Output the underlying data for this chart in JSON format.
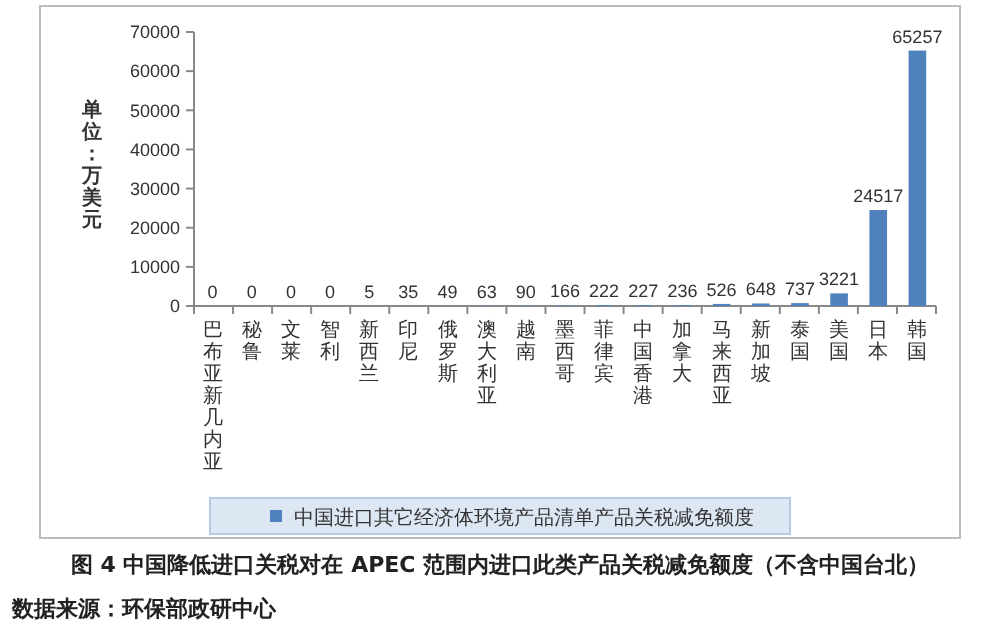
{
  "chart_data": {
    "type": "bar",
    "title": "图 4 中国降低进口关税对在 APEC 范围内进口此类产品关税减免额度（不含中国台北）",
    "ylabel": "单位：万美元",
    "categories": [
      "巴布亚新几内亚",
      "秘鲁",
      "文莱",
      "智利",
      "新西兰",
      "印尼",
      "俄罗斯",
      "澳大利亚",
      "越南",
      "墨西哥",
      "菲律宾",
      "中国香港",
      "加拿大",
      "马来西亚",
      "新加坡",
      "泰国",
      "美国",
      "日本",
      "韩国"
    ],
    "series": [
      {
        "name": "中国进口其它经济体环境产品清单产品关税减免额度",
        "color": "#4f81bd",
        "values": [
          0,
          0,
          0,
          0,
          5,
          35,
          49,
          63,
          90,
          166,
          222,
          227,
          236,
          526,
          648,
          737,
          3221,
          24517,
          65257
        ]
      }
    ],
    "ylim": [
      0,
      70000
    ],
    "yticks": [
      0,
      10000,
      20000,
      30000,
      40000,
      50000,
      60000,
      70000
    ],
    "data_labels": true,
    "legend": "bottom",
    "grid": false,
    "annotations": [
      "数据来源：环保部政研中心"
    ]
  }
}
